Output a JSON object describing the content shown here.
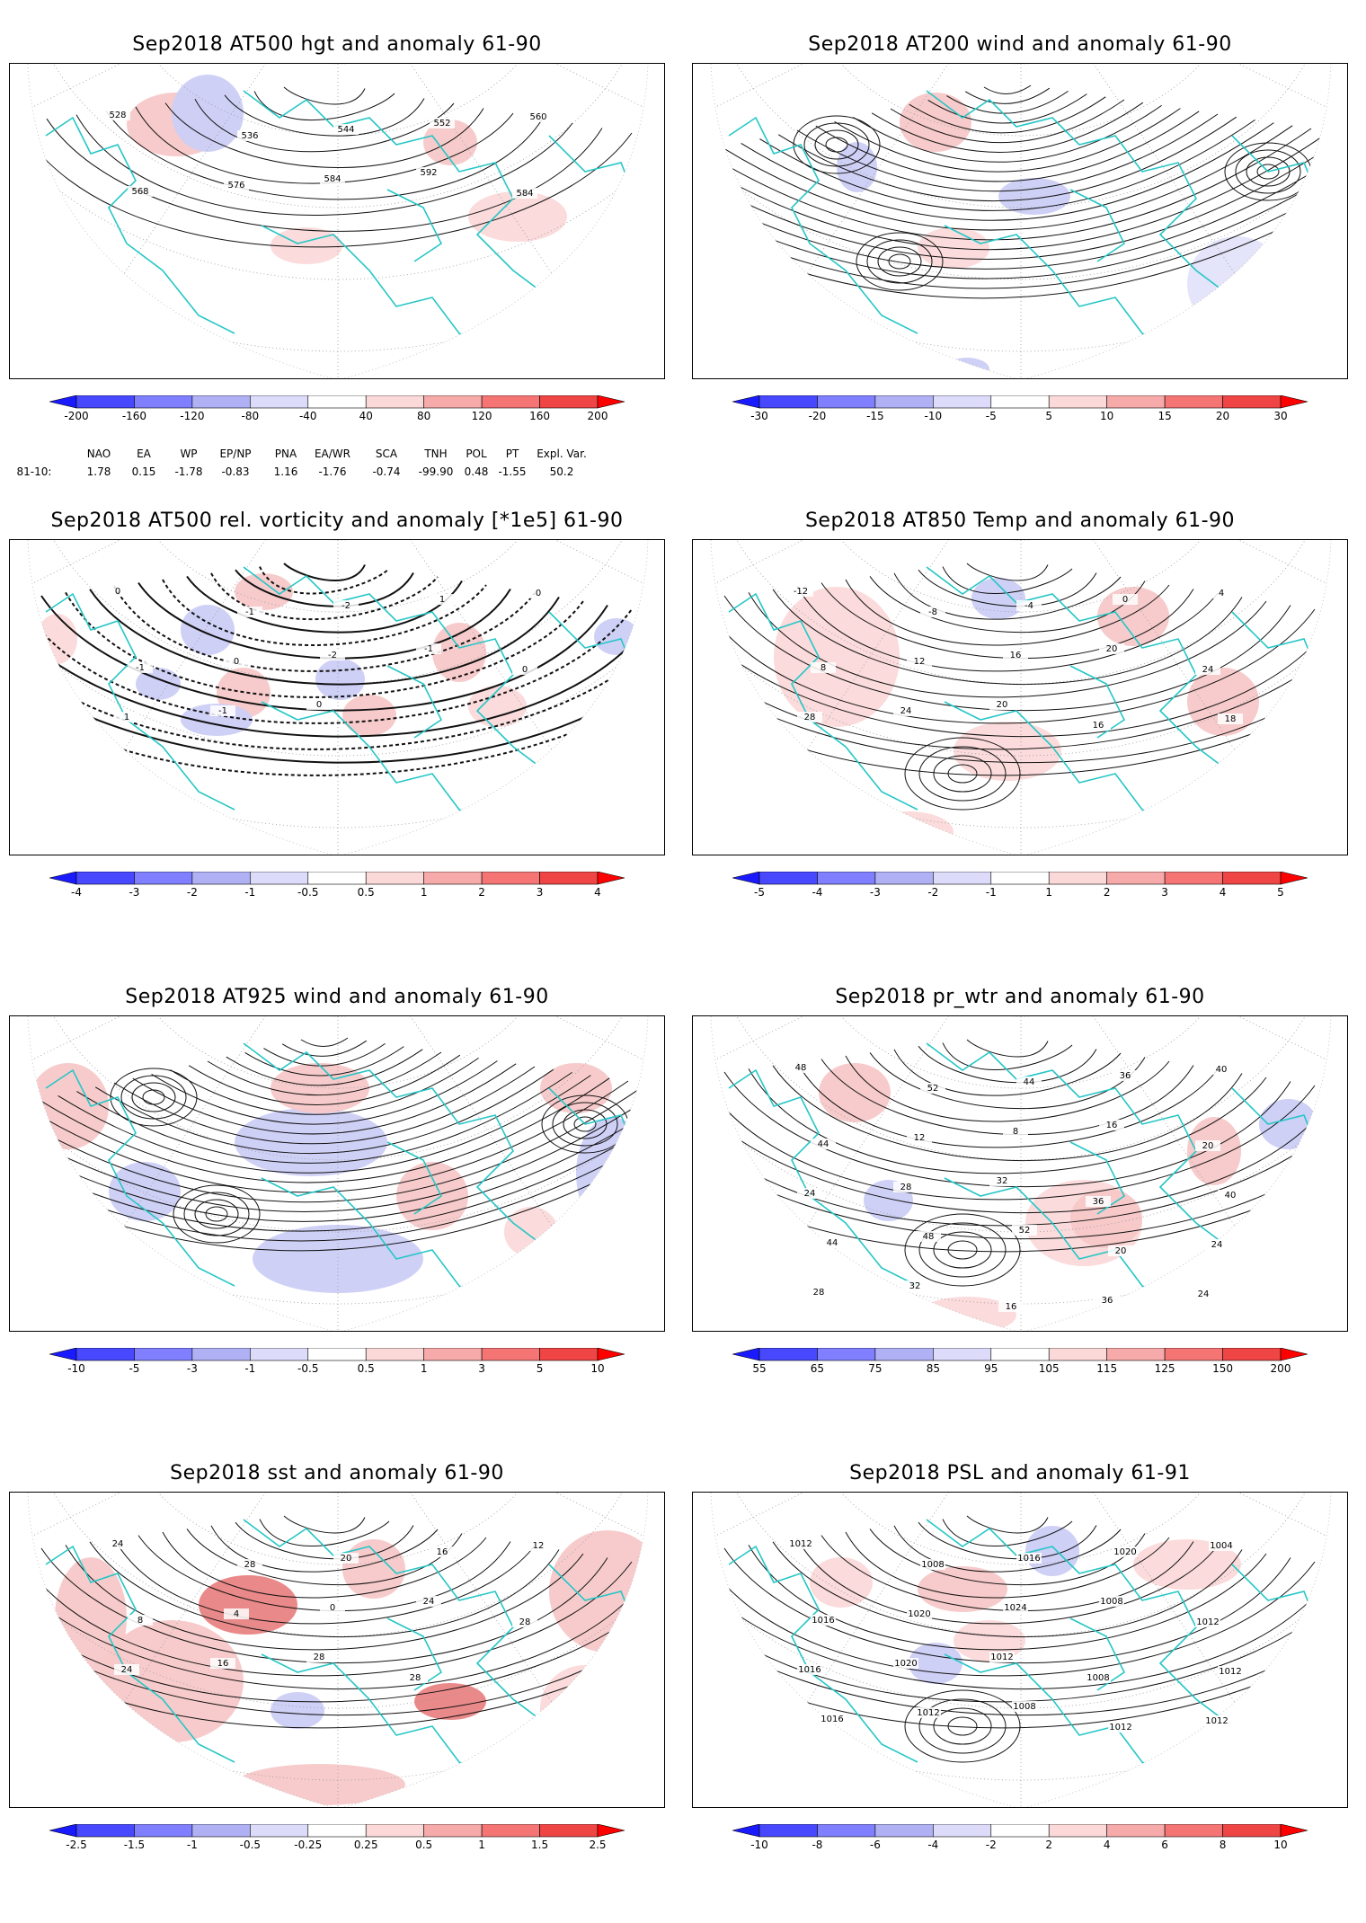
{
  "panels": [
    {
      "id": "p1",
      "title": "Sep2018 AT500 hgt and anomaly 61-90",
      "kind": "contour",
      "ticks": [
        "-200",
        "-160",
        "-120",
        "-80",
        "-40",
        "40",
        "80",
        "120",
        "160",
        "200"
      ],
      "labels": [
        "528",
        "536",
        "544",
        "552",
        "560",
        "568",
        "576",
        "584",
        "592",
        "584"
      ],
      "anoms": [
        [
          "#f7c8c8",
          140,
          40,
          90,
          55
        ],
        [
          "#fbd9d9",
          520,
          150,
          90,
          40
        ],
        [
          "#cccdf5",
          190,
          20,
          60,
          70
        ],
        [
          "#f7c8c8",
          470,
          70,
          40,
          35
        ],
        [
          "#fbd9d9",
          300,
          190,
          60,
          25
        ]
      ]
    },
    {
      "id": "p2",
      "title": "Sep2018 AT200 wind and anomaly 61-90",
      "kind": "stream",
      "ticks": [
        "-30",
        "-20",
        "-15",
        "-10",
        "-5",
        "5",
        "10",
        "15",
        "20",
        "30"
      ],
      "labels": [],
      "anoms": [
        [
          "#cccdf5",
          170,
          95,
          25,
          40
        ],
        [
          "#f7c8c8",
          240,
          40,
          60,
          50
        ],
        [
          "#cccdf5",
          350,
          135,
          60,
          25
        ],
        [
          "#e3e3fa",
          560,
          200,
          90,
          90
        ],
        [
          "#cccdf5",
          290,
          335,
          30,
          10
        ],
        [
          "#fbd9d9",
          260,
          190,
          60,
          30
        ]
      ]
    },
    {
      "id": "p3",
      "title": "Sep2018 AT500 rel. vorticity and anomaly [*1e5] 61-90",
      "kind": "vort",
      "ticks": [
        "-4",
        "-3",
        "-2",
        "-1",
        "-0.5",
        "0.5",
        "1",
        "2",
        "3",
        "4"
      ],
      "labels": [
        "0",
        "-1",
        "-2",
        "1",
        "0",
        "-1",
        "0",
        "-2",
        "-1",
        "0",
        "1",
        "-1",
        "0"
      ],
      "anoms": [
        [
          "#cccdf5",
          200,
          80,
          40,
          40
        ],
        [
          "#f7c8c8",
          260,
          45,
          45,
          25
        ],
        [
          "#f7c8c8",
          240,
          150,
          40,
          40
        ],
        [
          "#cccdf5",
          350,
          140,
          35,
          30
        ],
        [
          "#f7c8c8",
          480,
          100,
          40,
          50
        ],
        [
          "#cccdf5",
          660,
          95,
          30,
          25
        ],
        [
          "#cccdf5",
          200,
          190,
          60,
          20
        ],
        [
          "#fbd9d9",
          40,
          90,
          25,
          40
        ],
        [
          "#f7c8c8",
          380,
          180,
          40,
          30
        ],
        [
          "#cccdf5",
          150,
          150,
          30,
          20
        ],
        [
          "#fbd9d9",
          520,
          170,
          45,
          30
        ]
      ]
    },
    {
      "id": "p4",
      "title": "Sep2018 AT850 Temp and anomaly 61-90",
      "kind": "contour2",
      "ticks": [
        "-5",
        "-4",
        "-3",
        "-2",
        "-1",
        "1",
        "2",
        "3",
        "4",
        "5"
      ],
      "labels": [
        "-12",
        "-8",
        "-4",
        "0",
        "4",
        "8",
        "12",
        "16",
        "20",
        "24",
        "28",
        "24",
        "20",
        "16",
        "18"
      ],
      "anoms": [
        [
          "#fbd9d9",
          100,
          60,
          120,
          140
        ],
        [
          "#f7c8c8",
          460,
          60,
          60,
          50
        ],
        [
          "#f7c8c8",
          560,
          150,
          60,
          60
        ],
        [
          "#fbd9d9",
          300,
          210,
          100,
          50
        ],
        [
          "#cccdf5",
          320,
          50,
          40,
          30
        ],
        [
          "#fbd9d9",
          200,
          310,
          80,
          30
        ],
        [
          "#fbd9d9",
          600,
          300,
          80,
          40
        ]
      ]
    },
    {
      "id": "p5",
      "title": "Sep2018 AT925 wind and anomaly 61-90",
      "kind": "stream2",
      "ticks": [
        "-10",
        "-5",
        "-3",
        "-1",
        "-0.5",
        "0.5",
        "1",
        "3",
        "5",
        "10"
      ],
      "labels": [],
      "anoms": [
        [
          "#f7c8c8",
          30,
          60,
          70,
          80
        ],
        [
          "#cccdf5",
          260,
          110,
          150,
          60
        ],
        [
          "#f7c8c8",
          300,
          60,
          90,
          40
        ],
        [
          "#cccdf5",
          640,
          120,
          60,
          110
        ],
        [
          "#cccdf5",
          280,
          240,
          170,
          60
        ],
        [
          "#f7c8c8",
          440,
          170,
          60,
          60
        ],
        [
          "#cccdf5",
          120,
          170,
          60,
          50
        ],
        [
          "#f7c8c8",
          600,
          60,
          60,
          40
        ],
        [
          "#fbd9d9",
          560,
          220,
          40,
          40
        ]
      ]
    },
    {
      "id": "p6",
      "title": "Sep2018 pr_wtr and anomaly 61-90",
      "kind": "contour3",
      "ticks": [
        "55",
        "65",
        "75",
        "85",
        "95",
        "105",
        "115",
        "125",
        "150",
        "200"
      ],
      "labels": [
        "48",
        "52",
        "44",
        "36",
        "40",
        "44",
        "12",
        "8",
        "16",
        "20",
        "24",
        "28",
        "32",
        "36",
        "40",
        "44",
        "48",
        "52",
        "20",
        "24",
        "28",
        "32",
        "16",
        "36",
        "24",
        "40",
        "48",
        "52",
        "48"
      ],
      "anoms": [
        [
          "#f7c8c8",
          150,
          60,
          60,
          50
        ],
        [
          "#fbd9d9",
          380,
          190,
          110,
          80
        ],
        [
          "#f7c8c8",
          430,
          200,
          60,
          50
        ],
        [
          "#f7c8c8",
          560,
          120,
          40,
          60
        ],
        [
          "#cccdf5",
          640,
          100,
          45,
          40
        ],
        [
          "#fbd9d9",
          260,
          320,
          90,
          25
        ],
        [
          "#cccdf5",
          200,
          190,
          35,
          30
        ],
        [
          "#cccdf5",
          660,
          230,
          30,
          30
        ]
      ]
    },
    {
      "id": "p7",
      "title": "Sep2018 sst and anomaly 61-90",
      "kind": "sst",
      "ticks": [
        "-2.5",
        "-1.5",
        "-1",
        "-0.5",
        "-0.25",
        "0.25",
        "0.5",
        "1",
        "1.5",
        "2.5"
      ],
      "labels": [
        "24",
        "28",
        "20",
        "16",
        "12",
        "8",
        "4",
        "0",
        "24",
        "28",
        "24",
        "16",
        "28",
        "28"
      ],
      "anoms": [
        [
          "#f7c8c8",
          60,
          80,
          60,
          120
        ],
        [
          "#e88383",
          220,
          100,
          90,
          50
        ],
        [
          "#f7c8c8",
          110,
          150,
          140,
          120
        ],
        [
          "#f7c8c8",
          380,
          60,
          50,
          50
        ],
        [
          "#e88383",
          460,
          220,
          60,
          25
        ],
        [
          "#cccdf5",
          300,
          230,
          40,
          25
        ],
        [
          "#f7c8c8",
          610,
          50,
          110,
          120
        ],
        [
          "#f7c8c8",
          260,
          310,
          170,
          30
        ],
        [
          "#fbd9d9",
          600,
          200,
          80,
          80
        ]
      ]
    },
    {
      "id": "p8",
      "title": "Sep2018 PSL and anomaly 61-91",
      "kind": "psl",
      "ticks": [
        "-10",
        "-8",
        "-6",
        "-4",
        "-2",
        "2",
        "4",
        "6",
        "8",
        "10"
      ],
      "labels": [
        "1012",
        "1008",
        "1016",
        "1020",
        "1004",
        "1016",
        "1020",
        "1024",
        "1008",
        "1012",
        "1016",
        "1020",
        "1012",
        "1008",
        "1012",
        "1016",
        "1012",
        "1008",
        "1012",
        "1012"
      ],
      "anoms": [
        [
          "#f7c8c8",
          260,
          90,
          80,
          35
        ],
        [
          "#cccdf5",
          380,
          45,
          40,
          40
        ],
        [
          "#fbd9d9",
          500,
          60,
          100,
          40
        ],
        [
          "#cccdf5",
          250,
          175,
          40,
          30
        ],
        [
          "#fbd9d9",
          140,
          80,
          50,
          40
        ],
        [
          "#fbd9d9",
          300,
          150,
          60,
          30
        ]
      ]
    }
  ],
  "teleconnections": {
    "row_label": "81-10:",
    "names": [
      "NAO",
      "EA",
      "WP",
      "EP/NP",
      "PNA",
      "EA/WR",
      "SCA",
      "TNH",
      "POL",
      "PT",
      "Expl. Var."
    ],
    "values": [
      "1.78",
      "0.15",
      "-1.78",
      "-0.83",
      "1.16",
      "-1.76",
      "-0.74",
      "-99.90",
      "0.48",
      "-1.55",
      "50.2"
    ]
  },
  "colorbar_colors": [
    "#1a1aff",
    "#4848ff",
    "#7f7fff",
    "#b0b0f5",
    "#dcdcfa",
    "#ffffff",
    "#fbd9d9",
    "#f7aaaa",
    "#f57575",
    "#ef4545",
    "#ff0000"
  ]
}
